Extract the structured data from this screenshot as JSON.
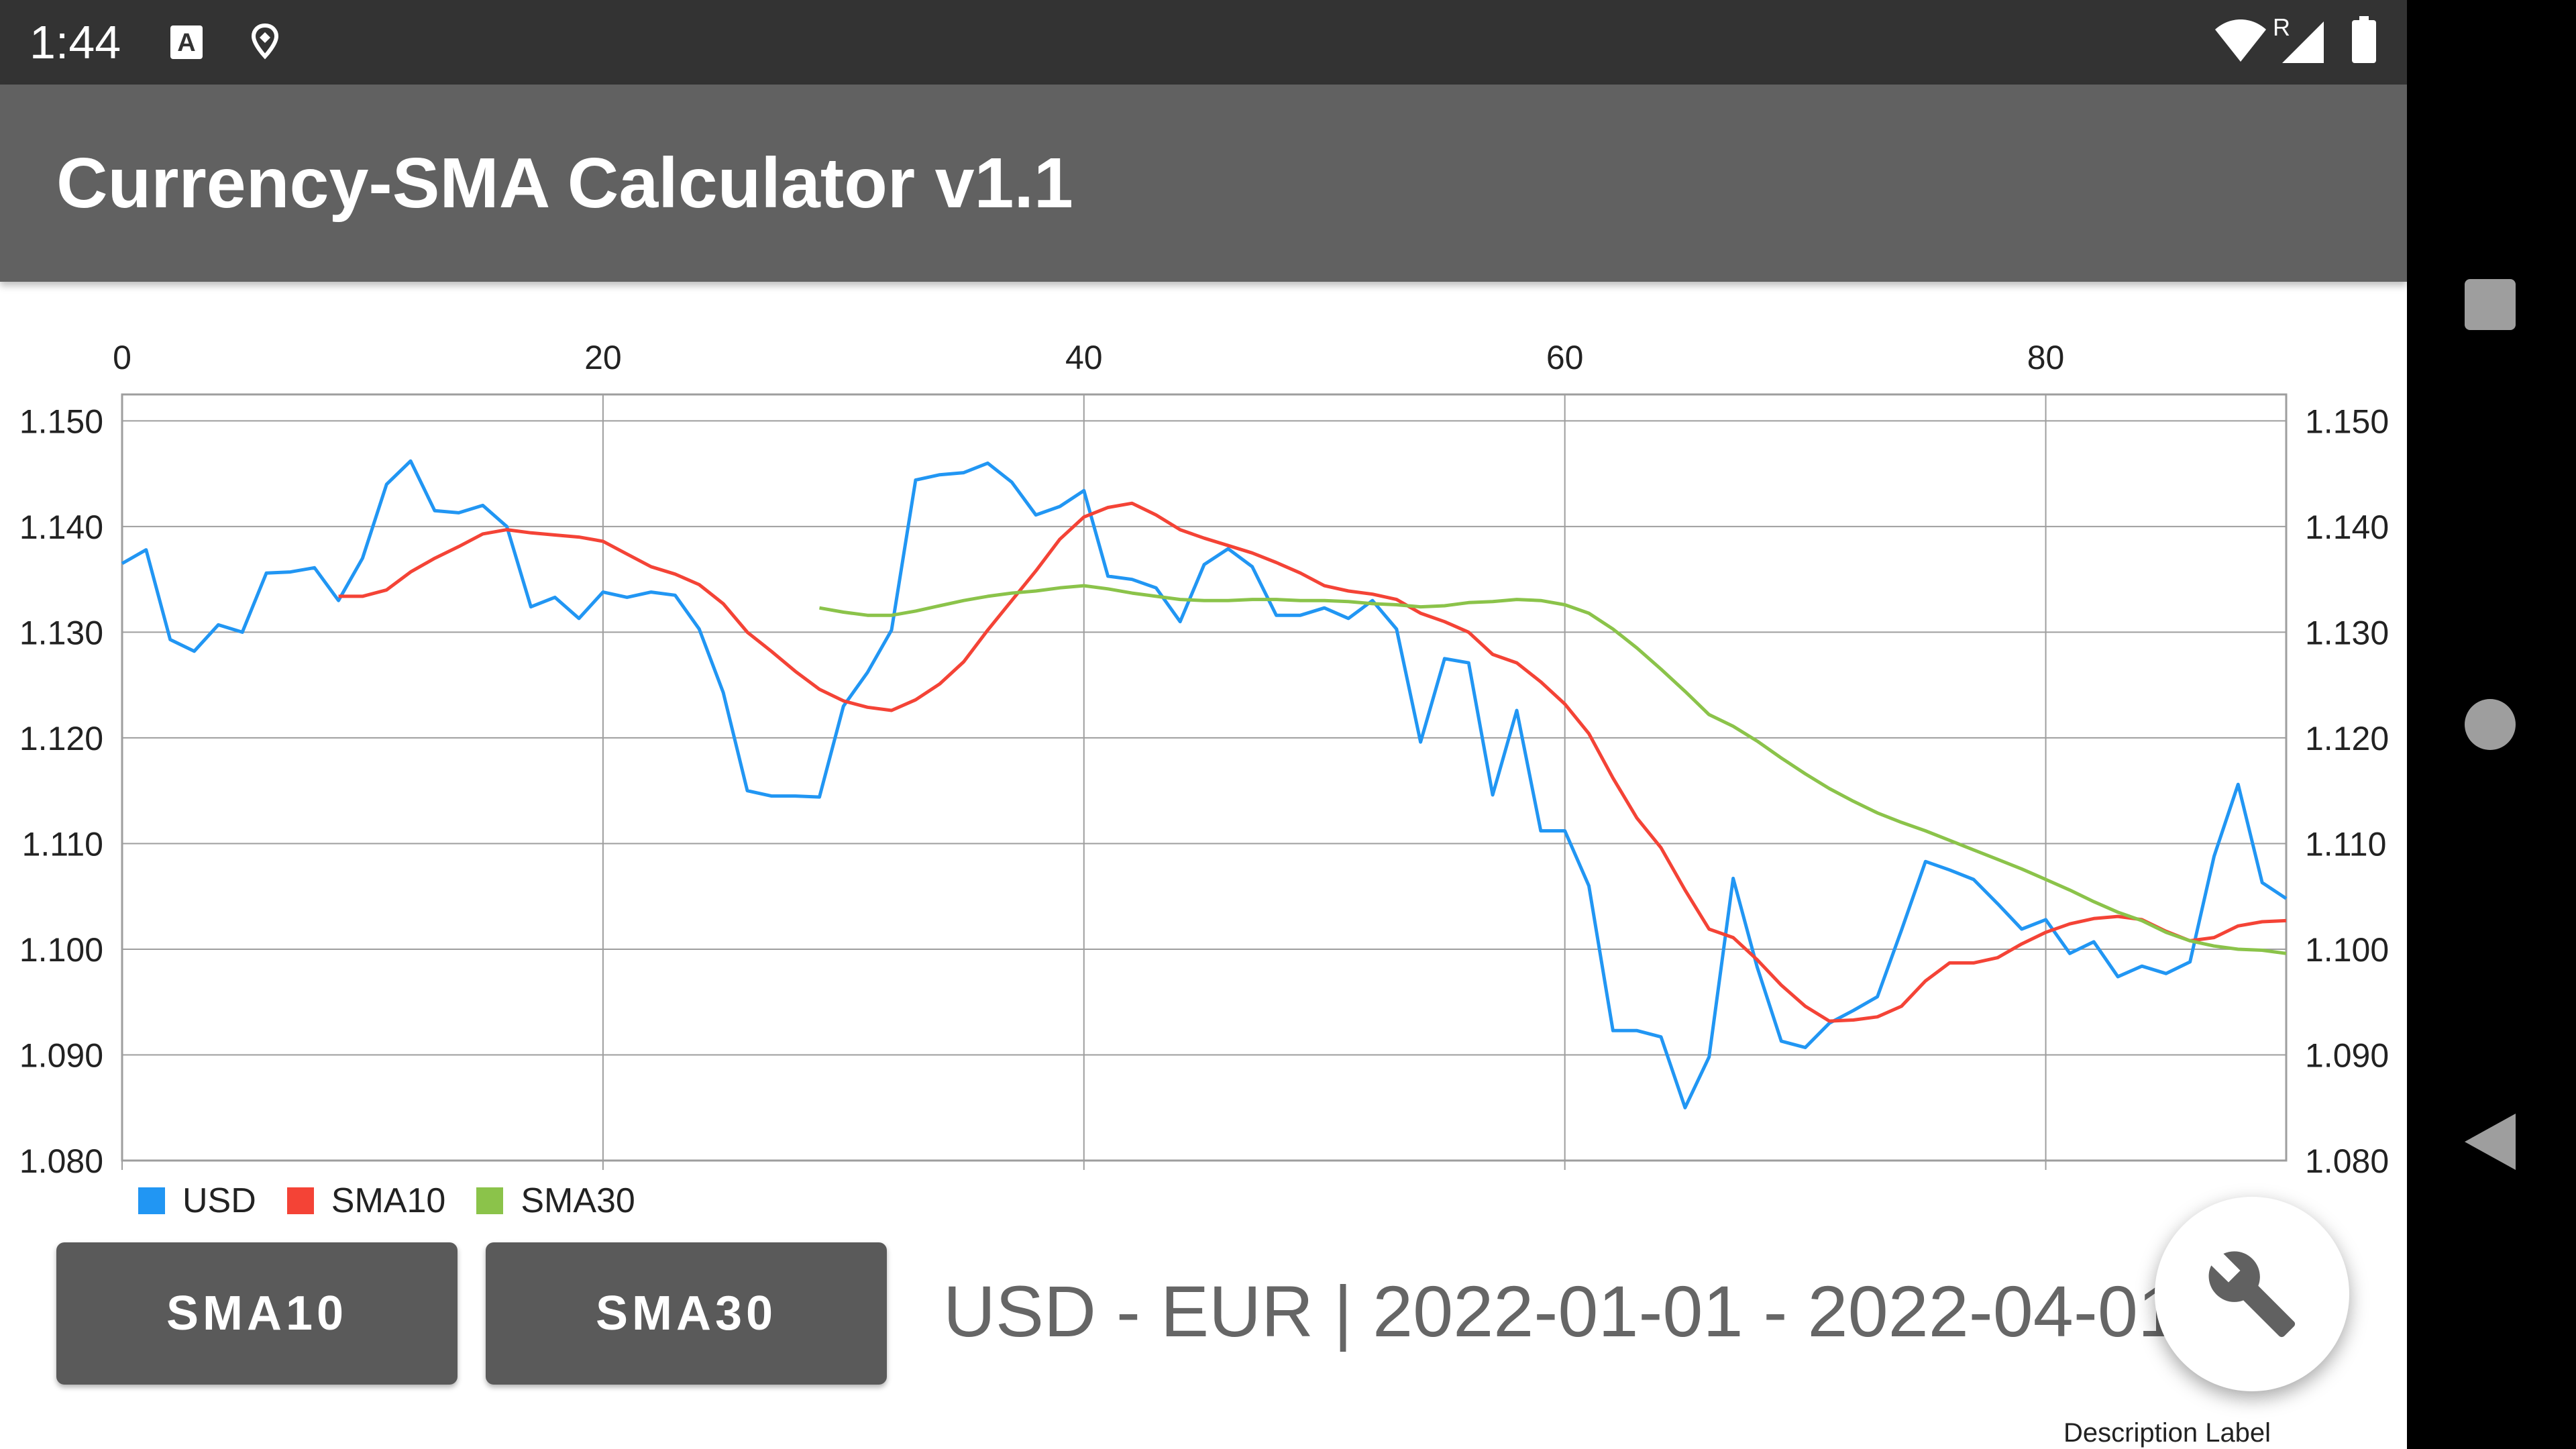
{
  "status_bar": {
    "time": "1:44",
    "icons": [
      "a-text-icon",
      "location-pin-icon",
      "wifi-icon",
      "roaming-indicator",
      "cell-signal-icon",
      "battery-icon"
    ],
    "roaming_label": "R"
  },
  "app_bar": {
    "title": "Currency-SMA Calculator v1.1"
  },
  "chart_data": {
    "type": "line",
    "x_ticks": [
      0,
      20,
      40,
      60,
      80
    ],
    "y_ticks": [
      "1.080",
      "1.090",
      "1.100",
      "1.110",
      "1.120",
      "1.130",
      "1.140",
      "1.150"
    ],
    "xlim": [
      0,
      90
    ],
    "ylim": [
      1.08,
      1.1525
    ],
    "grid": true,
    "legend_position": "bottom-left",
    "description": "Description Label",
    "series": [
      {
        "name": "USD",
        "color": "#2196f3",
        "x": [
          0,
          1,
          2,
          3,
          4,
          5,
          6,
          7,
          8,
          9,
          10,
          11,
          12,
          13,
          14,
          15,
          16,
          17,
          18,
          19,
          20,
          21,
          22,
          23,
          24,
          25,
          26,
          27,
          28,
          29,
          30,
          31,
          32,
          33,
          34,
          35,
          36,
          37,
          38,
          39,
          40,
          41,
          42,
          43,
          44,
          45,
          46,
          47,
          48,
          49,
          50,
          51,
          52,
          53,
          54,
          55,
          56,
          57,
          58,
          59,
          60,
          61,
          62,
          63,
          64,
          65,
          66,
          67,
          68,
          69,
          70,
          71,
          72,
          73,
          74,
          75,
          76,
          77,
          78,
          79,
          80,
          81,
          82,
          83,
          84,
          85,
          86,
          87,
          88,
          89,
          90
        ],
        "y": [
          1.1365,
          1.1378,
          1.1293,
          1.1282,
          1.1307,
          1.13,
          1.1356,
          1.1357,
          1.1361,
          1.133,
          1.137,
          1.144,
          1.1462,
          1.1415,
          1.1413,
          1.142,
          1.14,
          1.1324,
          1.1333,
          1.1313,
          1.1338,
          1.1333,
          1.1338,
          1.1335,
          1.1303,
          1.1243,
          1.115,
          1.1145,
          1.1145,
          1.1144,
          1.123,
          1.1262,
          1.1302,
          1.1444,
          1.1449,
          1.1451,
          1.146,
          1.1442,
          1.1411,
          1.1419,
          1.1434,
          1.1353,
          1.135,
          1.1342,
          1.131,
          1.1364,
          1.1379,
          1.1362,
          1.1316,
          1.1316,
          1.1323,
          1.1313,
          1.133,
          1.1303,
          1.1196,
          1.1275,
          1.1271,
          1.1146,
          1.1226,
          1.1112,
          1.1112,
          1.106,
          1.0923,
          1.0923,
          1.0917,
          1.085,
          1.0898,
          1.1067,
          1.0983,
          1.0913,
          1.0907,
          1.093,
          1.0942,
          1.0955,
          1.1018,
          1.1083,
          1.1075,
          1.1066,
          1.1043,
          1.1019,
          1.1028,
          1.0996,
          1.1007,
          1.0974,
          1.0984,
          1.0977,
          1.0988,
          1.1088,
          1.1156,
          1.1063,
          1.1048
        ]
      },
      {
        "name": "SMA10",
        "color": "#f44336",
        "x": [
          9,
          10,
          11,
          12,
          13,
          14,
          15,
          16,
          17,
          18,
          19,
          20,
          21,
          22,
          23,
          24,
          25,
          26,
          27,
          28,
          29,
          30,
          31,
          32,
          33,
          34,
          35,
          36,
          37,
          38,
          39,
          40,
          41,
          42,
          43,
          44,
          45,
          46,
          47,
          48,
          49,
          50,
          51,
          52,
          53,
          54,
          55,
          56,
          57,
          58,
          59,
          60,
          61,
          62,
          63,
          64,
          65,
          66,
          67,
          68,
          69,
          70,
          71,
          72,
          73,
          74,
          75,
          76,
          77,
          78,
          79,
          80,
          81,
          82,
          83,
          84,
          85,
          86,
          87,
          88,
          89,
          90
        ],
        "y": [
          1.1334,
          1.1334,
          1.134,
          1.1357,
          1.137,
          1.1381,
          1.1393,
          1.1397,
          1.1394,
          1.1392,
          1.139,
          1.1386,
          1.1374,
          1.1362,
          1.1355,
          1.1345,
          1.1327,
          1.13,
          1.1282,
          1.1263,
          1.1246,
          1.1235,
          1.1229,
          1.1226,
          1.1236,
          1.1251,
          1.1272,
          1.1302,
          1.133,
          1.1358,
          1.1388,
          1.1409,
          1.1418,
          1.1422,
          1.1411,
          1.1397,
          1.1389,
          1.1382,
          1.1375,
          1.1366,
          1.1356,
          1.1344,
          1.1339,
          1.1336,
          1.1331,
          1.1318,
          1.131,
          1.13,
          1.1279,
          1.1271,
          1.1253,
          1.1232,
          1.1204,
          1.1162,
          1.1124,
          1.1096,
          1.1056,
          1.1019,
          1.1011,
          1.099,
          1.0966,
          1.0946,
          1.0932,
          1.0933,
          1.0936,
          1.0946,
          1.097,
          1.0987,
          1.0987,
          1.0992,
          1.1005,
          1.1016,
          1.1024,
          1.1029,
          1.1031,
          1.1028,
          1.1017,
          1.1008,
          1.1011,
          1.1022,
          1.1026,
          1.1027
        ]
      },
      {
        "name": "SMA30",
        "color": "#8bc34a",
        "x": [
          29,
          30,
          31,
          32,
          33,
          34,
          35,
          36,
          37,
          38,
          39,
          40,
          41,
          42,
          43,
          44,
          45,
          46,
          47,
          48,
          49,
          50,
          51,
          52,
          53,
          54,
          55,
          56,
          57,
          58,
          59,
          60,
          61,
          62,
          63,
          64,
          65,
          66,
          67,
          68,
          69,
          70,
          71,
          72,
          73,
          74,
          75,
          76,
          77,
          78,
          79,
          80,
          81,
          82,
          83,
          84,
          85,
          86,
          87,
          88,
          89,
          90
        ],
        "y": [
          1.1323,
          1.1319,
          1.1316,
          1.1316,
          1.132,
          1.1325,
          1.133,
          1.1334,
          1.1337,
          1.1339,
          1.1342,
          1.1344,
          1.1341,
          1.1337,
          1.1334,
          1.1331,
          1.133,
          1.133,
          1.1331,
          1.1331,
          1.133,
          1.133,
          1.1329,
          1.1327,
          1.1326,
          1.1324,
          1.1325,
          1.1328,
          1.1329,
          1.1331,
          1.133,
          1.1326,
          1.1318,
          1.1303,
          1.1285,
          1.1265,
          1.1244,
          1.1222,
          1.1211,
          1.1197,
          1.1181,
          1.1166,
          1.1152,
          1.114,
          1.1129,
          1.112,
          1.1112,
          1.1103,
          1.1094,
          1.1085,
          1.1076,
          1.1066,
          1.1056,
          1.1045,
          1.1035,
          1.1027,
          1.1016,
          1.1008,
          1.1003,
          1.1,
          1.0999,
          1.0996
        ]
      }
    ]
  },
  "buttons": {
    "sma10": "SMA10",
    "sma30": "SMA30"
  },
  "info": {
    "text": "USD - EUR | 2022-01-01 - 2022-04-01"
  },
  "fab": {
    "icon": "wrench-icon"
  },
  "nav": {
    "icons": [
      "recents-square-icon",
      "home-circle-icon",
      "back-triangle-icon"
    ]
  }
}
